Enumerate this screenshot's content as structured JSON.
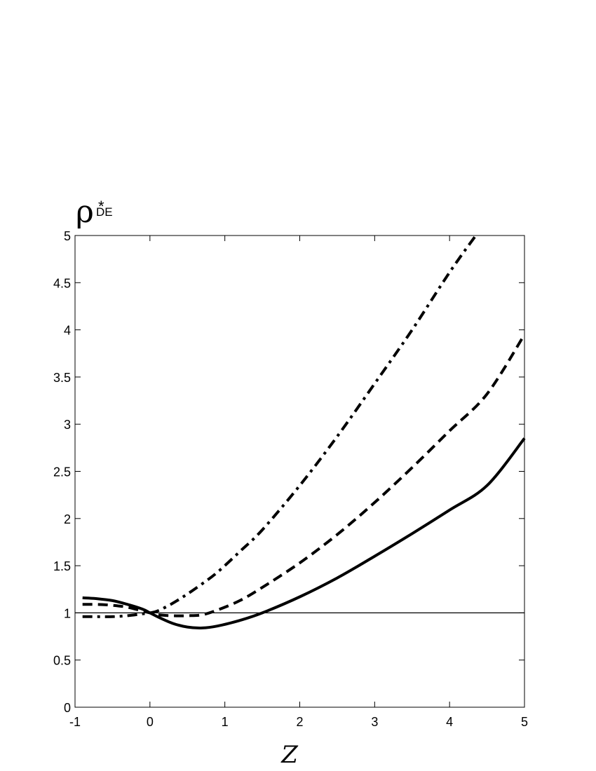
{
  "chart_data": {
    "type": "line",
    "xlabel": "Z",
    "ylabel": {
      "main": "ρ",
      "subscript": "DE",
      "superscript": "*"
    },
    "xlim": [
      -1,
      5
    ],
    "ylim": [
      0,
      5
    ],
    "xticks": [
      "-1",
      "0",
      "1",
      "2",
      "3",
      "4",
      "5"
    ],
    "yticks": [
      "0",
      "0.5",
      "1",
      "1.5",
      "2",
      "2.5",
      "3",
      "3.5",
      "4",
      "4.5",
      "5"
    ],
    "grid": false,
    "reference_line": {
      "y": 1,
      "style": "thin solid"
    },
    "series": [
      {
        "style": "solid",
        "x": [
          -0.9,
          -0.7,
          -0.5,
          -0.3,
          -0.1,
          0.0,
          0.1,
          0.3,
          0.5,
          0.7,
          0.9,
          1.2,
          1.5,
          2.0,
          2.5,
          3.0,
          3.5,
          4.0,
          4.5,
          5.0
        ],
        "y": [
          1.16,
          1.15,
          1.13,
          1.09,
          1.04,
          1.0,
          0.96,
          0.89,
          0.85,
          0.84,
          0.86,
          0.92,
          1.0,
          1.17,
          1.37,
          1.6,
          1.84,
          2.09,
          2.35,
          2.85
        ]
      },
      {
        "style": "dashed",
        "x": [
          -0.9,
          -0.7,
          -0.5,
          -0.3,
          -0.1,
          0.0,
          0.1,
          0.3,
          0.5,
          0.7,
          0.9,
          1.2,
          1.5,
          2.0,
          2.5,
          3.0,
          3.5,
          4.0,
          4.5,
          5.0
        ],
        "y": [
          1.09,
          1.09,
          1.08,
          1.06,
          1.02,
          1.0,
          0.98,
          0.97,
          0.97,
          0.98,
          1.03,
          1.13,
          1.27,
          1.53,
          1.83,
          2.17,
          2.54,
          2.93,
          3.32,
          3.95
        ]
      },
      {
        "style": "dash-dot",
        "x": [
          -0.9,
          -0.7,
          -0.5,
          -0.3,
          -0.1,
          0.0,
          0.1,
          0.3,
          0.5,
          0.7,
          0.9,
          1.2,
          1.5,
          2.0,
          2.5,
          3.0,
          3.5,
          4.0,
          4.35
        ],
        "y": [
          0.96,
          0.96,
          0.96,
          0.97,
          0.99,
          1.0,
          1.02,
          1.1,
          1.2,
          1.31,
          1.43,
          1.65,
          1.88,
          2.35,
          2.87,
          3.43,
          4.0,
          4.61,
          5.0
        ]
      }
    ]
  }
}
